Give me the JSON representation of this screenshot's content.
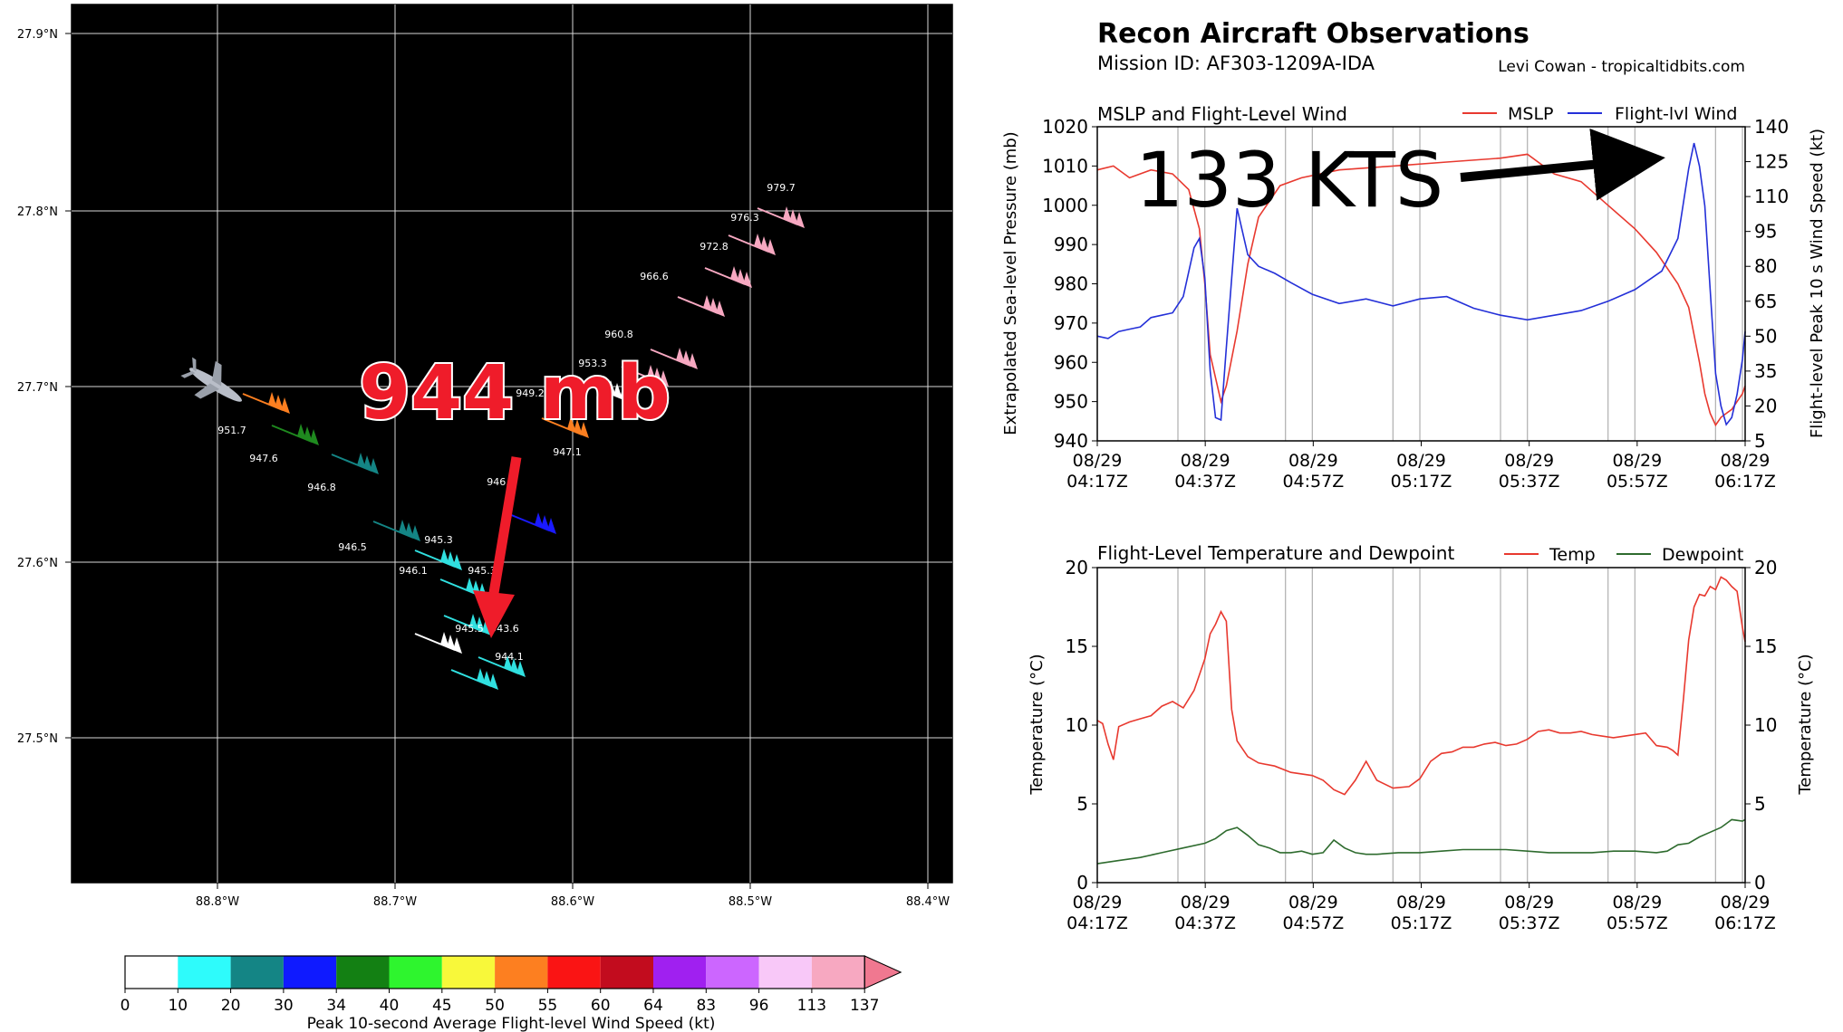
{
  "map": {
    "lat_ticks": [
      "27.9°N",
      "27.8°N",
      "27.7°N",
      "27.6°N",
      "27.5°N"
    ],
    "lon_ticks": [
      "88.8°W",
      "88.7°W",
      "88.6°W",
      "88.5°W",
      "88.4°W"
    ],
    "obs": [
      {
        "label": "979.7",
        "bc": "#f7a8c1"
      },
      {
        "label": "976.3",
        "bc": "#f7a8c1"
      },
      {
        "label": "972.8",
        "bc": "#f7a8c1"
      },
      {
        "label": "966.6",
        "bc": "#f7a8c1"
      },
      {
        "label": "960.8",
        "bc": "#f7a8c1"
      },
      {
        "label": "953.3",
        "bc": "#f7a8c1"
      },
      {
        "label": "949.2",
        "bc": "#ffffff"
      },
      {
        "label": "947.1",
        "bc": "#fd7f20"
      },
      {
        "label": "946.7",
        "bc": "#1a1aff"
      },
      {
        "label": "951.7",
        "bc": "#fd7f20"
      },
      {
        "label": "947.6",
        "bc": "#1f8a1f"
      },
      {
        "label": "946.8",
        "bc": "#148585"
      },
      {
        "label": "946.5",
        "bc": "#148585"
      },
      {
        "label": "945.3",
        "bc": "#30e0e0"
      },
      {
        "label": "946.1",
        "bc": "#30e0e0"
      },
      {
        "label": "945.3",
        "bc": "#30e0e0"
      },
      {
        "label": "945.5",
        "bc": "#ffffff"
      },
      {
        "label": "943.6",
        "bc": "#30e0e0"
      },
      {
        "label": "944.1",
        "bc": "#30e0e0"
      }
    ],
    "annotation": "944 mb",
    "colorbar": {
      "ticks": [
        "0",
        "10",
        "20",
        "30",
        "34",
        "40",
        "45",
        "50",
        "55",
        "60",
        "64",
        "83",
        "96",
        "113",
        "137"
      ],
      "colors": [
        "#ffffff",
        "#2efbfb",
        "#148585",
        "#0f1aff",
        "#138013",
        "#2ef52e",
        "#f8f83a",
        "#fd7f20",
        "#fa1414",
        "#c20c1e",
        "#a020f0",
        "#cc66ff",
        "#f8c8f8",
        "#f7a8c1",
        "#f07890"
      ],
      "label": "Peak 10-second Average Flight-level Wind Speed (kt)"
    }
  },
  "header": {
    "title": "Recon Aircraft Observations",
    "mission": "Mission ID: AF303-1209A-IDA",
    "credit": "Levi Cowan - tropicaltidbits.com"
  },
  "chart_data": [
    {
      "type": "line",
      "title": "MSLP and Flight-Level Wind",
      "xlabel": "",
      "ylabel": "Extrapolated Sea-level Pressure (mb)",
      "ylabel2": "Flight-level Peak 10 s Wind Speed (kt)",
      "ylim": [
        940,
        1020
      ],
      "ylim2": [
        5,
        140
      ],
      "yticks": [
        940,
        950,
        960,
        970,
        980,
        990,
        1000,
        1010,
        1020
      ],
      "yticks2": [
        5,
        20,
        35,
        50,
        65,
        80,
        95,
        110,
        125,
        140
      ],
      "x_ticks": [
        [
          "08/29",
          "04:17Z"
        ],
        [
          "08/29",
          "04:37Z"
        ],
        [
          "08/29",
          "04:57Z"
        ],
        [
          "08/29",
          "05:17Z"
        ],
        [
          "08/29",
          "05:37Z"
        ],
        [
          "08/29",
          "05:57Z"
        ],
        [
          "08/29",
          "06:17Z"
        ]
      ],
      "grid": "vertical",
      "legend": "top-right",
      "annotation": "133 KTS",
      "series": [
        {
          "name": "MSLP",
          "color": "#e8392f",
          "axis": "left",
          "x": [
            0,
            3,
            6,
            10,
            14,
            17,
            19,
            20,
            21,
            23,
            24,
            26,
            28,
            30,
            34,
            38,
            45,
            55,
            65,
            75,
            80,
            85,
            90,
            95,
            100,
            104,
            108,
            110,
            112,
            113,
            114,
            115,
            116,
            117,
            118,
            119,
            120,
            120.5
          ],
          "values": [
            1009,
            1010,
            1007,
            1009,
            1008,
            1004,
            994,
            980,
            962,
            950,
            954,
            968,
            985,
            997,
            1005,
            1007,
            1009,
            1010,
            1011,
            1012,
            1013,
            1008,
            1006,
            1000,
            994,
            988,
            980,
            974,
            960,
            952,
            947,
            944,
            946,
            947,
            948,
            950,
            952,
            954
          ]
        },
        {
          "name": "Flight-lvl Wind",
          "color": "#2430d8",
          "axis": "right",
          "x": [
            0,
            2,
            4,
            6,
            8,
            10,
            12,
            14,
            16,
            18,
            19,
            20,
            21,
            22,
            23,
            24,
            26,
            28,
            30,
            33,
            36,
            40,
            45,
            50,
            55,
            60,
            65,
            70,
            75,
            80,
            85,
            90,
            95,
            100,
            105,
            108,
            110,
            111,
            112,
            113,
            114,
            115,
            116,
            117,
            118,
            119,
            120,
            120.5
          ],
          "values": [
            50,
            49,
            52,
            53,
            54,
            58,
            59,
            60,
            67,
            88,
            92,
            75,
            35,
            15,
            14,
            45,
            105,
            85,
            80,
            77,
            73,
            68,
            64,
            66,
            63,
            66,
            67,
            62,
            59,
            57,
            59,
            61,
            65,
            70,
            78,
            92,
            122,
            133,
            123,
            106,
            70,
            34,
            20,
            12,
            15,
            25,
            40,
            52
          ]
        }
      ]
    },
    {
      "type": "line",
      "title": "Flight-Level Temperature and Dewpoint",
      "xlabel": "",
      "ylabel": "Temperature (°C)",
      "ylabel2": "Temperature (°C)",
      "ylim": [
        0,
        20
      ],
      "yticks": [
        0,
        5,
        10,
        15,
        20
      ],
      "x_ticks": [
        [
          "08/29",
          "04:17Z"
        ],
        [
          "08/29",
          "04:37Z"
        ],
        [
          "08/29",
          "04:57Z"
        ],
        [
          "08/29",
          "05:17Z"
        ],
        [
          "08/29",
          "05:37Z"
        ],
        [
          "08/29",
          "05:57Z"
        ],
        [
          "08/29",
          "06:17Z"
        ]
      ],
      "grid": "vertical",
      "legend": "top-right",
      "series": [
        {
          "name": "Temp",
          "color": "#e8392f",
          "x": [
            0,
            1,
            2,
            3,
            4,
            6,
            8,
            10,
            12,
            14,
            16,
            18,
            20,
            21,
            22,
            23,
            24,
            25,
            26,
            28,
            30,
            33,
            36,
            40,
            42,
            44,
            46,
            48,
            50,
            52,
            55,
            58,
            60,
            62,
            64,
            66,
            68,
            70,
            72,
            74,
            76,
            78,
            80,
            82,
            84,
            86,
            88,
            90,
            92,
            94,
            96,
            98,
            100,
            102,
            104,
            106,
            107,
            108,
            109,
            110,
            111,
            112,
            113,
            114,
            115,
            116,
            117,
            118,
            119,
            120,
            120.5
          ],
          "values": [
            10.3,
            10.1,
            8.8,
            7.8,
            9.9,
            10.2,
            10.4,
            10.6,
            11.2,
            11.5,
            11.1,
            12.2,
            14.2,
            15.8,
            16.4,
            17.2,
            16.6,
            11.0,
            9.0,
            8.0,
            7.6,
            7.4,
            7.0,
            6.8,
            6.5,
            5.9,
            5.6,
            6.5,
            7.7,
            6.5,
            6.0,
            6.1,
            6.6,
            7.7,
            8.2,
            8.3,
            8.6,
            8.6,
            8.8,
            8.9,
            8.7,
            8.8,
            9.1,
            9.6,
            9.7,
            9.5,
            9.5,
            9.6,
            9.4,
            9.3,
            9.2,
            9.3,
            9.4,
            9.5,
            8.7,
            8.6,
            8.4,
            8.1,
            11.6,
            15.4,
            17.5,
            18.3,
            18.2,
            18.8,
            18.6,
            19.4,
            19.2,
            18.8,
            18.5,
            16.2,
            15.3
          ]
        },
        {
          "name": "Dewpoint",
          "color": "#2e6b2e",
          "x": [
            0,
            4,
            8,
            12,
            16,
            20,
            22,
            24,
            26,
            28,
            30,
            32,
            34,
            36,
            38,
            40,
            42,
            44,
            46,
            48,
            50,
            52,
            56,
            60,
            64,
            68,
            72,
            76,
            80,
            84,
            88,
            92,
            96,
            100,
            104,
            106,
            108,
            110,
            112,
            114,
            116,
            118,
            120,
            120.5
          ],
          "values": [
            1.2,
            1.4,
            1.6,
            1.9,
            2.2,
            2.5,
            2.8,
            3.3,
            3.5,
            3.0,
            2.4,
            2.2,
            1.9,
            1.9,
            2.0,
            1.8,
            1.9,
            2.7,
            2.2,
            1.9,
            1.8,
            1.8,
            1.9,
            1.9,
            2.0,
            2.1,
            2.1,
            2.1,
            2.0,
            1.9,
            1.9,
            1.9,
            2.0,
            2.0,
            1.9,
            2.0,
            2.4,
            2.5,
            2.9,
            3.2,
            3.5,
            4.0,
            3.9,
            4.0
          ]
        }
      ]
    }
  ]
}
